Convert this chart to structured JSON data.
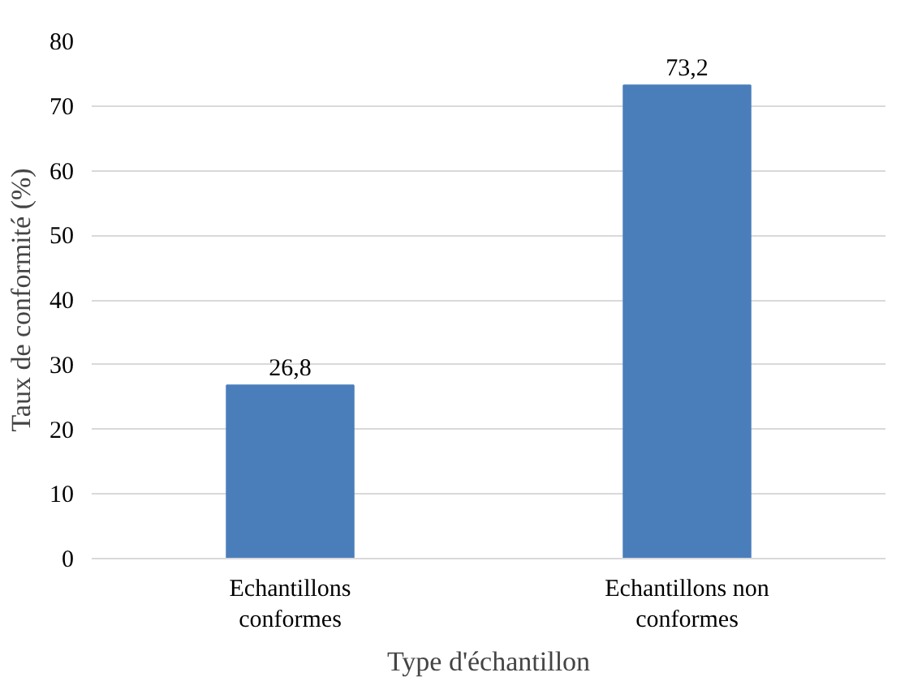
{
  "chart_data": {
    "type": "bar",
    "xlabel": "Type d'échantillon",
    "ylabel": "Taux de conformité (%)",
    "categories": [
      "Echantillons conformes",
      "Echantillons non conformes"
    ],
    "values": [
      26.8,
      73.2
    ],
    "color": "#4a7ebb",
    "value_labels": [
      "26,8",
      "73,2"
    ],
    "ylim": [
      0,
      80
    ],
    "yticks": [
      0,
      10,
      20,
      30,
      40,
      50,
      60,
      70,
      80
    ],
    "grid": "y"
  }
}
